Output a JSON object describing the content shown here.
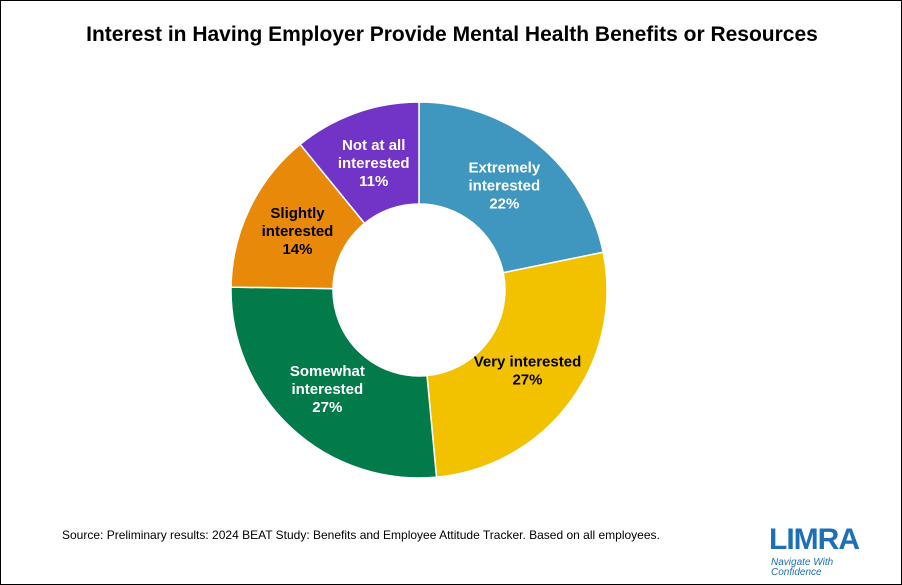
{
  "chart_data": {
    "type": "pie",
    "subtype": "donut",
    "title": "Interest in Having Employer Provide Mental Health Benefits or Resources",
    "slices": [
      {
        "label": [
          "Extremely",
          "interested"
        ],
        "value": 22,
        "display": "22%",
        "color": "#3f97c0",
        "text_color": "#ffffff"
      },
      {
        "label": [
          "Very interested"
        ],
        "value": 27,
        "display": "27%",
        "color": "#f2c100",
        "text_color": "#000000"
      },
      {
        "label": [
          "Somewhat",
          "interested"
        ],
        "value": 27,
        "display": "27%",
        "color": "#027a4a",
        "text_color": "#ffffff"
      },
      {
        "label": [
          "Slightly",
          "interested"
        ],
        "value": 14,
        "display": "14%",
        "color": "#e8890a",
        "text_color": "#000000"
      },
      {
        "label": [
          "Not at all",
          "interested"
        ],
        "value": 11,
        "display": "11%",
        "color": "#7134c6",
        "text_color": "#ffffff"
      }
    ]
  },
  "footer": {
    "source": "Source: Preliminary results: 2024 BEAT Study: Benefits and Employee Attitude Tracker. Based on all employees."
  },
  "logo": {
    "name": "LIMRA",
    "tagline_line1": "Navigate With",
    "tagline_line2": "Confidence",
    "color": "#1d6fb8"
  }
}
